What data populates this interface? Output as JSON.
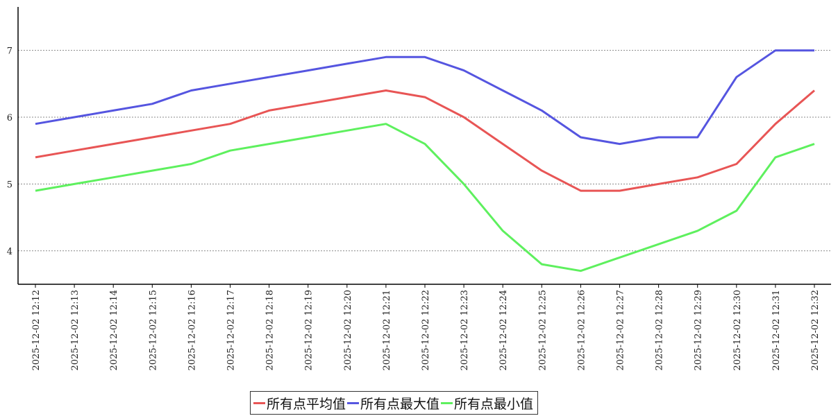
{
  "chart_data": {
    "type": "line",
    "title": "",
    "xlabel": "",
    "ylabel": "",
    "ylim": [
      3.5,
      7.65
    ],
    "yticks": [
      4,
      5,
      6,
      7
    ],
    "grid": "horizontal-dashed",
    "legend_position": "bottom-center",
    "x": [
      "2025-12-02 12:12",
      "2025-12-02 12:13",
      "2025-12-02 12:14",
      "2025-12-02 12:15",
      "2025-12-02 12:16",
      "2025-12-02 12:17",
      "2025-12-02 12:18",
      "2025-12-02 12:19",
      "2025-12-02 12:20",
      "2025-12-02 12:21",
      "2025-12-02 12:22",
      "2025-12-02 12:23",
      "2025-12-02 12:24",
      "2025-12-02 12:25",
      "2025-12-02 12:26",
      "2025-12-02 12:27",
      "2025-12-02 12:28",
      "2025-12-02 12:29",
      "2025-12-02 12:30",
      "2025-12-02 12:31",
      "2025-12-02 12:32"
    ],
    "series": [
      {
        "name": "所有点平均值",
        "color": "#e85555",
        "values": [
          5.4,
          5.5,
          5.6,
          5.7,
          5.8,
          5.9,
          6.1,
          6.2,
          6.3,
          6.4,
          6.3,
          6.0,
          5.6,
          5.2,
          4.9,
          4.9,
          5.0,
          5.1,
          5.3,
          5.9,
          6.4
        ]
      },
      {
        "name": "所有点最大值",
        "color": "#5555e0",
        "values": [
          5.9,
          6.0,
          6.1,
          6.2,
          6.4,
          6.5,
          6.6,
          6.7,
          6.8,
          6.9,
          6.9,
          6.7,
          6.4,
          6.1,
          5.7,
          5.6,
          5.7,
          5.7,
          6.6,
          7.0,
          7.0
        ]
      },
      {
        "name": "所有点最小值",
        "color": "#5ef05e",
        "values": [
          4.9,
          5.0,
          5.1,
          5.2,
          5.3,
          5.5,
          5.6,
          5.7,
          5.8,
          5.9,
          5.6,
          5.0,
          4.3,
          3.8,
          3.7,
          3.9,
          4.1,
          4.3,
          4.6,
          5.4,
          5.6
        ]
      }
    ]
  }
}
